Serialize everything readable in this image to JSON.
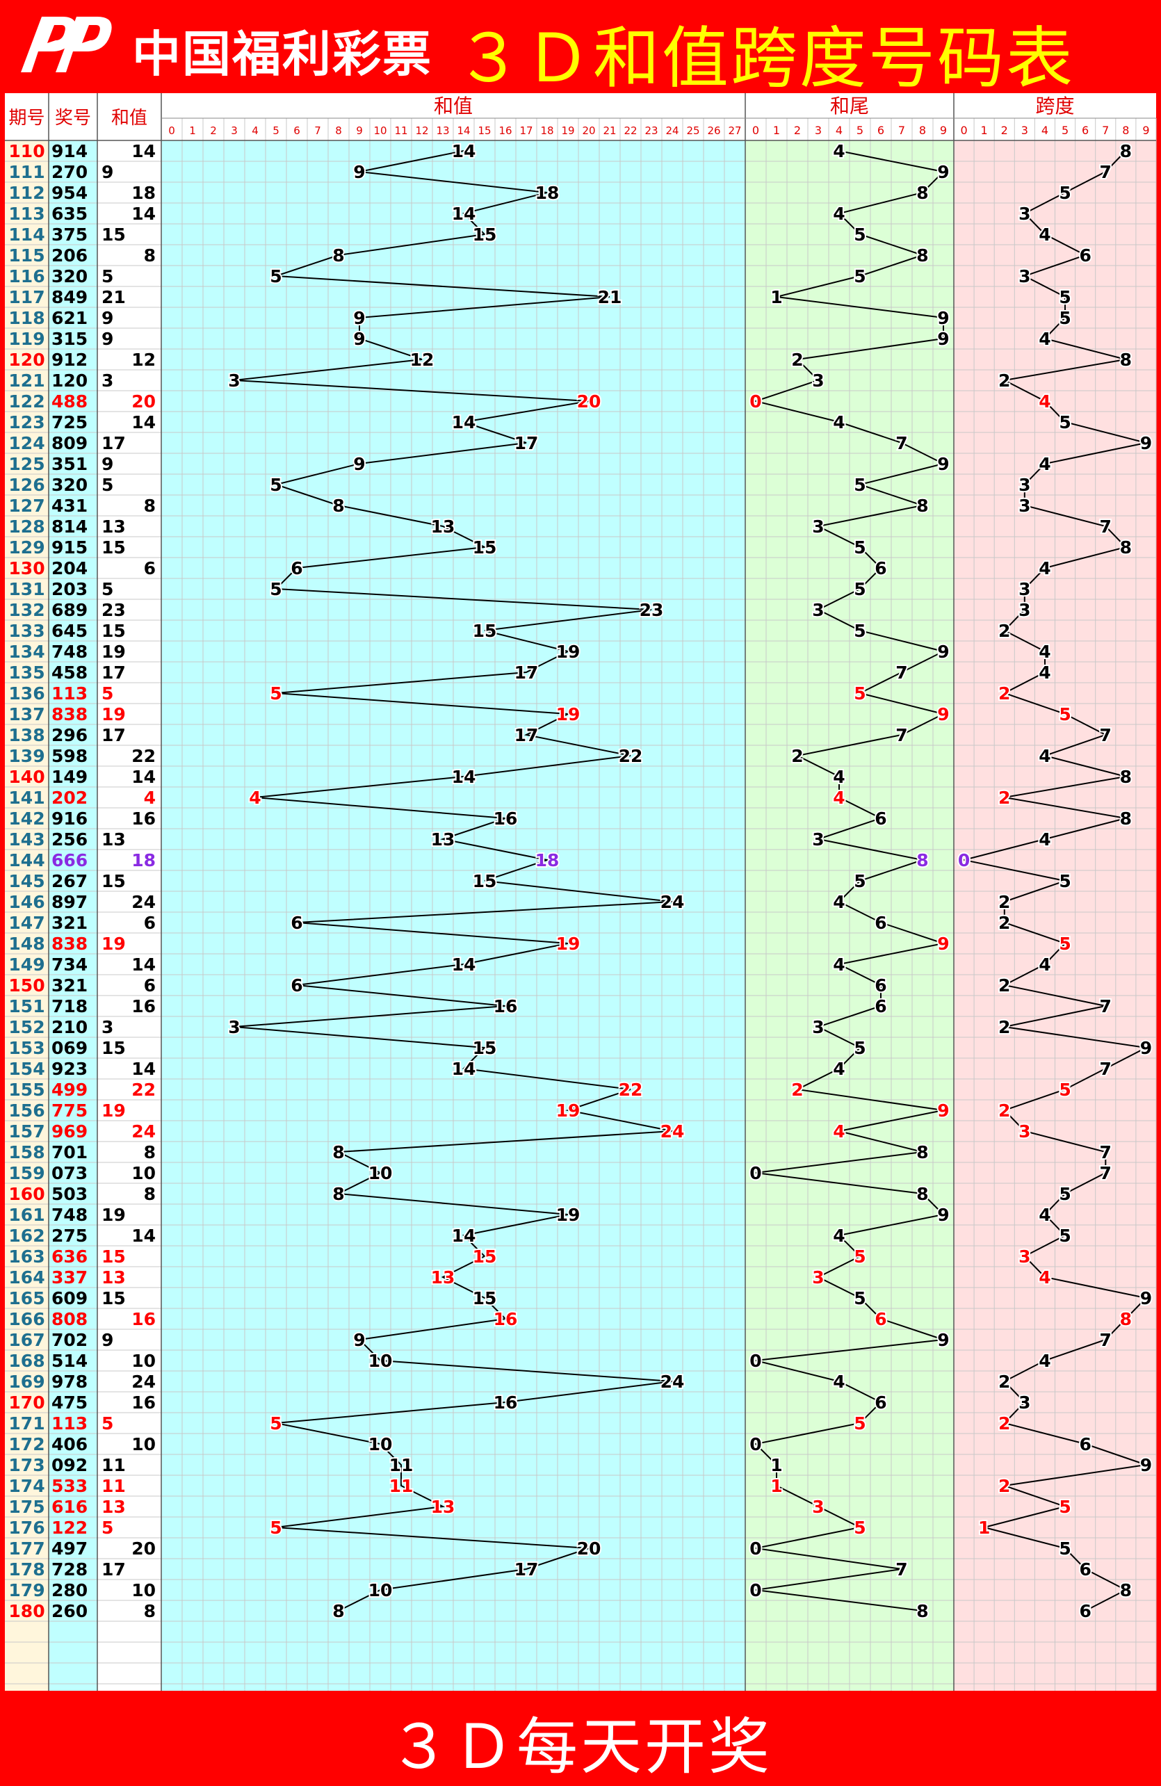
{
  "header": {
    "logo_text": "中国福利彩票",
    "title": "３Ｄ和值跨度号码表"
  },
  "footer": {
    "text": "３Ｄ每天开奖"
  },
  "colors": {
    "sum_bg": "#c0ffff",
    "tail_bg": "#dcffd6",
    "span_bg": "#ffe0e0",
    "issue_bg": "#fff6dc",
    "number_bg": "#c0ffff",
    "sumcol_bg": "#ffffff",
    "highlight_red": "#ff0000",
    "highlight_purple": "#8a2be2",
    "issue_text": "#1e6f8f"
  },
  "chart_data": {
    "type": "line",
    "column_headers": {
      "issue": "期号",
      "number": "奖号",
      "sum": "和值"
    },
    "group_headers": {
      "sum": "和值",
      "tail": "和尾",
      "span": "跨度"
    },
    "sum_ticks": [
      "0",
      "1",
      "2",
      "3",
      "4",
      "5",
      "6",
      "7",
      "8",
      "9",
      "10",
      "11",
      "12",
      "13",
      "14",
      "15",
      "16",
      "17",
      "18",
      "19",
      "20",
      "21",
      "22",
      "23",
      "24",
      "25",
      "26",
      "27"
    ],
    "digit_ticks": [
      "0",
      "1",
      "2",
      "3",
      "4",
      "5",
      "6",
      "7",
      "8",
      "9"
    ],
    "rows": [
      {
        "issue": "110",
        "number": "914",
        "sum": 14,
        "tail": 4,
        "span": 8,
        "hl": "",
        "issue_red": true
      },
      {
        "issue": "111",
        "number": "270",
        "sum": 9,
        "tail": 9,
        "span": 7,
        "hl": "",
        "issue_red": false
      },
      {
        "issue": "112",
        "number": "954",
        "sum": 18,
        "tail": 8,
        "span": 5,
        "hl": "",
        "issue_red": false
      },
      {
        "issue": "113",
        "number": "635",
        "sum": 14,
        "tail": 4,
        "span": 3,
        "hl": "",
        "issue_red": false
      },
      {
        "issue": "114",
        "number": "375",
        "sum": 15,
        "tail": 5,
        "span": 4,
        "hl": "",
        "issue_red": false
      },
      {
        "issue": "115",
        "number": "206",
        "sum": 8,
        "tail": 8,
        "span": 6,
        "hl": "",
        "issue_red": false
      },
      {
        "issue": "116",
        "number": "320",
        "sum": 5,
        "tail": 5,
        "span": 3,
        "hl": "",
        "issue_red": false
      },
      {
        "issue": "117",
        "number": "849",
        "sum": 21,
        "tail": 1,
        "span": 5,
        "hl": "",
        "issue_red": false
      },
      {
        "issue": "118",
        "number": "621",
        "sum": 9,
        "tail": 9,
        "span": 5,
        "hl": "",
        "issue_red": false
      },
      {
        "issue": "119",
        "number": "315",
        "sum": 9,
        "tail": 9,
        "span": 4,
        "hl": "",
        "issue_red": false
      },
      {
        "issue": "120",
        "number": "912",
        "sum": 12,
        "tail": 2,
        "span": 8,
        "hl": "",
        "issue_red": true
      },
      {
        "issue": "121",
        "number": "120",
        "sum": 3,
        "tail": 3,
        "span": 2,
        "hl": "",
        "issue_red": false
      },
      {
        "issue": "122",
        "number": "488",
        "sum": 20,
        "tail": 0,
        "span": 4,
        "hl": "red",
        "issue_red": false
      },
      {
        "issue": "123",
        "number": "725",
        "sum": 14,
        "tail": 4,
        "span": 5,
        "hl": "",
        "issue_red": false
      },
      {
        "issue": "124",
        "number": "809",
        "sum": 17,
        "tail": 7,
        "span": 9,
        "hl": "",
        "issue_red": false
      },
      {
        "issue": "125",
        "number": "351",
        "sum": 9,
        "tail": 9,
        "span": 4,
        "hl": "",
        "issue_red": false
      },
      {
        "issue": "126",
        "number": "320",
        "sum": 5,
        "tail": 5,
        "span": 3,
        "hl": "",
        "issue_red": false
      },
      {
        "issue": "127",
        "number": "431",
        "sum": 8,
        "tail": 8,
        "span": 3,
        "hl": "",
        "issue_red": false
      },
      {
        "issue": "128",
        "number": "814",
        "sum": 13,
        "tail": 3,
        "span": 7,
        "hl": "",
        "issue_red": false
      },
      {
        "issue": "129",
        "number": "915",
        "sum": 15,
        "tail": 5,
        "span": 8,
        "hl": "",
        "issue_red": false
      },
      {
        "issue": "130",
        "number": "204",
        "sum": 6,
        "tail": 6,
        "span": 4,
        "hl": "",
        "issue_red": true
      },
      {
        "issue": "131",
        "number": "203",
        "sum": 5,
        "tail": 5,
        "span": 3,
        "hl": "",
        "issue_red": false
      },
      {
        "issue": "132",
        "number": "689",
        "sum": 23,
        "tail": 3,
        "span": 3,
        "hl": "",
        "issue_red": false
      },
      {
        "issue": "133",
        "number": "645",
        "sum": 15,
        "tail": 5,
        "span": 2,
        "hl": "",
        "issue_red": false
      },
      {
        "issue": "134",
        "number": "748",
        "sum": 19,
        "tail": 9,
        "span": 4,
        "hl": "",
        "issue_red": false
      },
      {
        "issue": "135",
        "number": "458",
        "sum": 17,
        "tail": 7,
        "span": 4,
        "hl": "",
        "issue_red": false
      },
      {
        "issue": "136",
        "number": "113",
        "sum": 5,
        "tail": 5,
        "span": 2,
        "hl": "red",
        "issue_red": false
      },
      {
        "issue": "137",
        "number": "838",
        "sum": 19,
        "tail": 9,
        "span": 5,
        "hl": "red",
        "issue_red": false
      },
      {
        "issue": "138",
        "number": "296",
        "sum": 17,
        "tail": 7,
        "span": 7,
        "hl": "",
        "issue_red": false
      },
      {
        "issue": "139",
        "number": "598",
        "sum": 22,
        "tail": 2,
        "span": 4,
        "hl": "",
        "issue_red": false
      },
      {
        "issue": "140",
        "number": "149",
        "sum": 14,
        "tail": 4,
        "span": 8,
        "hl": "",
        "issue_red": true
      },
      {
        "issue": "141",
        "number": "202",
        "sum": 4,
        "tail": 4,
        "span": 2,
        "hl": "red",
        "issue_red": false
      },
      {
        "issue": "142",
        "number": "916",
        "sum": 16,
        "tail": 6,
        "span": 8,
        "hl": "",
        "issue_red": false
      },
      {
        "issue": "143",
        "number": "256",
        "sum": 13,
        "tail": 3,
        "span": 4,
        "hl": "",
        "issue_red": false
      },
      {
        "issue": "144",
        "number": "666",
        "sum": 18,
        "tail": 8,
        "span": 0,
        "hl": "purple",
        "issue_red": false
      },
      {
        "issue": "145",
        "number": "267",
        "sum": 15,
        "tail": 5,
        "span": 5,
        "hl": "",
        "issue_red": false
      },
      {
        "issue": "146",
        "number": "897",
        "sum": 24,
        "tail": 4,
        "span": 2,
        "hl": "",
        "issue_red": false
      },
      {
        "issue": "147",
        "number": "321",
        "sum": 6,
        "tail": 6,
        "span": 2,
        "hl": "",
        "issue_red": false
      },
      {
        "issue": "148",
        "number": "838",
        "sum": 19,
        "tail": 9,
        "span": 5,
        "hl": "red",
        "issue_red": false
      },
      {
        "issue": "149",
        "number": "734",
        "sum": 14,
        "tail": 4,
        "span": 4,
        "hl": "",
        "issue_red": false
      },
      {
        "issue": "150",
        "number": "321",
        "sum": 6,
        "tail": 6,
        "span": 2,
        "hl": "",
        "issue_red": true
      },
      {
        "issue": "151",
        "number": "718",
        "sum": 16,
        "tail": 6,
        "span": 7,
        "hl": "",
        "issue_red": false
      },
      {
        "issue": "152",
        "number": "210",
        "sum": 3,
        "tail": 3,
        "span": 2,
        "hl": "",
        "issue_red": false
      },
      {
        "issue": "153",
        "number": "069",
        "sum": 15,
        "tail": 5,
        "span": 9,
        "hl": "",
        "issue_red": false
      },
      {
        "issue": "154",
        "number": "923",
        "sum": 14,
        "tail": 4,
        "span": 7,
        "hl": "",
        "issue_red": false
      },
      {
        "issue": "155",
        "number": "499",
        "sum": 22,
        "tail": 2,
        "span": 5,
        "hl": "red",
        "issue_red": false
      },
      {
        "issue": "156",
        "number": "775",
        "sum": 19,
        "tail": 9,
        "span": 2,
        "hl": "red",
        "issue_red": false
      },
      {
        "issue": "157",
        "number": "969",
        "sum": 24,
        "tail": 4,
        "span": 3,
        "hl": "red",
        "issue_red": false
      },
      {
        "issue": "158",
        "number": "701",
        "sum": 8,
        "tail": 8,
        "span": 7,
        "hl": "",
        "issue_red": false
      },
      {
        "issue": "159",
        "number": "073",
        "sum": 10,
        "tail": 0,
        "span": 7,
        "hl": "",
        "issue_red": false
      },
      {
        "issue": "160",
        "number": "503",
        "sum": 8,
        "tail": 8,
        "span": 5,
        "hl": "",
        "issue_red": true
      },
      {
        "issue": "161",
        "number": "748",
        "sum": 19,
        "tail": 9,
        "span": 4,
        "hl": "",
        "issue_red": false
      },
      {
        "issue": "162",
        "number": "275",
        "sum": 14,
        "tail": 4,
        "span": 5,
        "hl": "",
        "issue_red": false
      },
      {
        "issue": "163",
        "number": "636",
        "sum": 15,
        "tail": 5,
        "span": 3,
        "hl": "red",
        "issue_red": false
      },
      {
        "issue": "164",
        "number": "337",
        "sum": 13,
        "tail": 3,
        "span": 4,
        "hl": "red",
        "issue_red": false
      },
      {
        "issue": "165",
        "number": "609",
        "sum": 15,
        "tail": 5,
        "span": 9,
        "hl": "",
        "issue_red": false
      },
      {
        "issue": "166",
        "number": "808",
        "sum": 16,
        "tail": 6,
        "span": 8,
        "hl": "red",
        "issue_red": false
      },
      {
        "issue": "167",
        "number": "702",
        "sum": 9,
        "tail": 9,
        "span": 7,
        "hl": "",
        "issue_red": false
      },
      {
        "issue": "168",
        "number": "514",
        "sum": 10,
        "tail": 0,
        "span": 4,
        "hl": "",
        "issue_red": false
      },
      {
        "issue": "169",
        "number": "978",
        "sum": 24,
        "tail": 4,
        "span": 2,
        "hl": "",
        "issue_red": false
      },
      {
        "issue": "170",
        "number": "475",
        "sum": 16,
        "tail": 6,
        "span": 3,
        "hl": "",
        "issue_red": true
      },
      {
        "issue": "171",
        "number": "113",
        "sum": 5,
        "tail": 5,
        "span": 2,
        "hl": "red",
        "issue_red": false
      },
      {
        "issue": "172",
        "number": "406",
        "sum": 10,
        "tail": 0,
        "span": 6,
        "hl": "",
        "issue_red": false
      },
      {
        "issue": "173",
        "number": "092",
        "sum": 11,
        "tail": 1,
        "span": 9,
        "hl": "",
        "issue_red": false
      },
      {
        "issue": "174",
        "number": "533",
        "sum": 11,
        "tail": 1,
        "span": 2,
        "hl": "red",
        "issue_red": false
      },
      {
        "issue": "175",
        "number": "616",
        "sum": 13,
        "tail": 3,
        "span": 5,
        "hl": "red",
        "issue_red": false
      },
      {
        "issue": "176",
        "number": "122",
        "sum": 5,
        "tail": 5,
        "span": 1,
        "hl": "red",
        "issue_red": false
      },
      {
        "issue": "177",
        "number": "497",
        "sum": 20,
        "tail": 0,
        "span": 5,
        "hl": "",
        "issue_red": false
      },
      {
        "issue": "178",
        "number": "728",
        "sum": 17,
        "tail": 7,
        "span": 6,
        "hl": "",
        "issue_red": false
      },
      {
        "issue": "179",
        "number": "280",
        "sum": 10,
        "tail": 0,
        "span": 8,
        "hl": "",
        "issue_red": false
      },
      {
        "issue": "180",
        "number": "260",
        "sum": 8,
        "tail": 8,
        "span": 6,
        "hl": "",
        "issue_red": true
      }
    ]
  }
}
